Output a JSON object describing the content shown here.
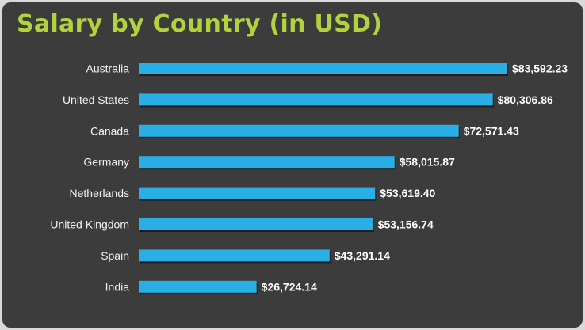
{
  "colors": {
    "background": "#3c3c3c",
    "title": "#b4d23c",
    "bar": "#2aaee6",
    "bar_shadow": "#1b1b1b",
    "text": "#f2f2f2"
  },
  "chart_data": {
    "type": "bar",
    "orientation": "horizontal",
    "title": "Salary by Country (in USD)",
    "xlabel": "",
    "ylabel": "",
    "grid": false,
    "xlim": [
      0,
      83592.23
    ],
    "categories": [
      "Australia",
      "United States",
      "Canada",
      "Germany",
      "Netherlands",
      "United Kingdom",
      "Spain",
      "India"
    ],
    "values": [
      83592.23,
      80306.86,
      72571.43,
      58015.87,
      53619.4,
      53156.74,
      43291.14,
      26724.14
    ],
    "value_labels": [
      "$83,592.23",
      "$80,306.86",
      "$72,571.43",
      "$58,015.87",
      "$53,619.40",
      "$53,156.74",
      "$43,291.14",
      "$26,724.14"
    ]
  }
}
